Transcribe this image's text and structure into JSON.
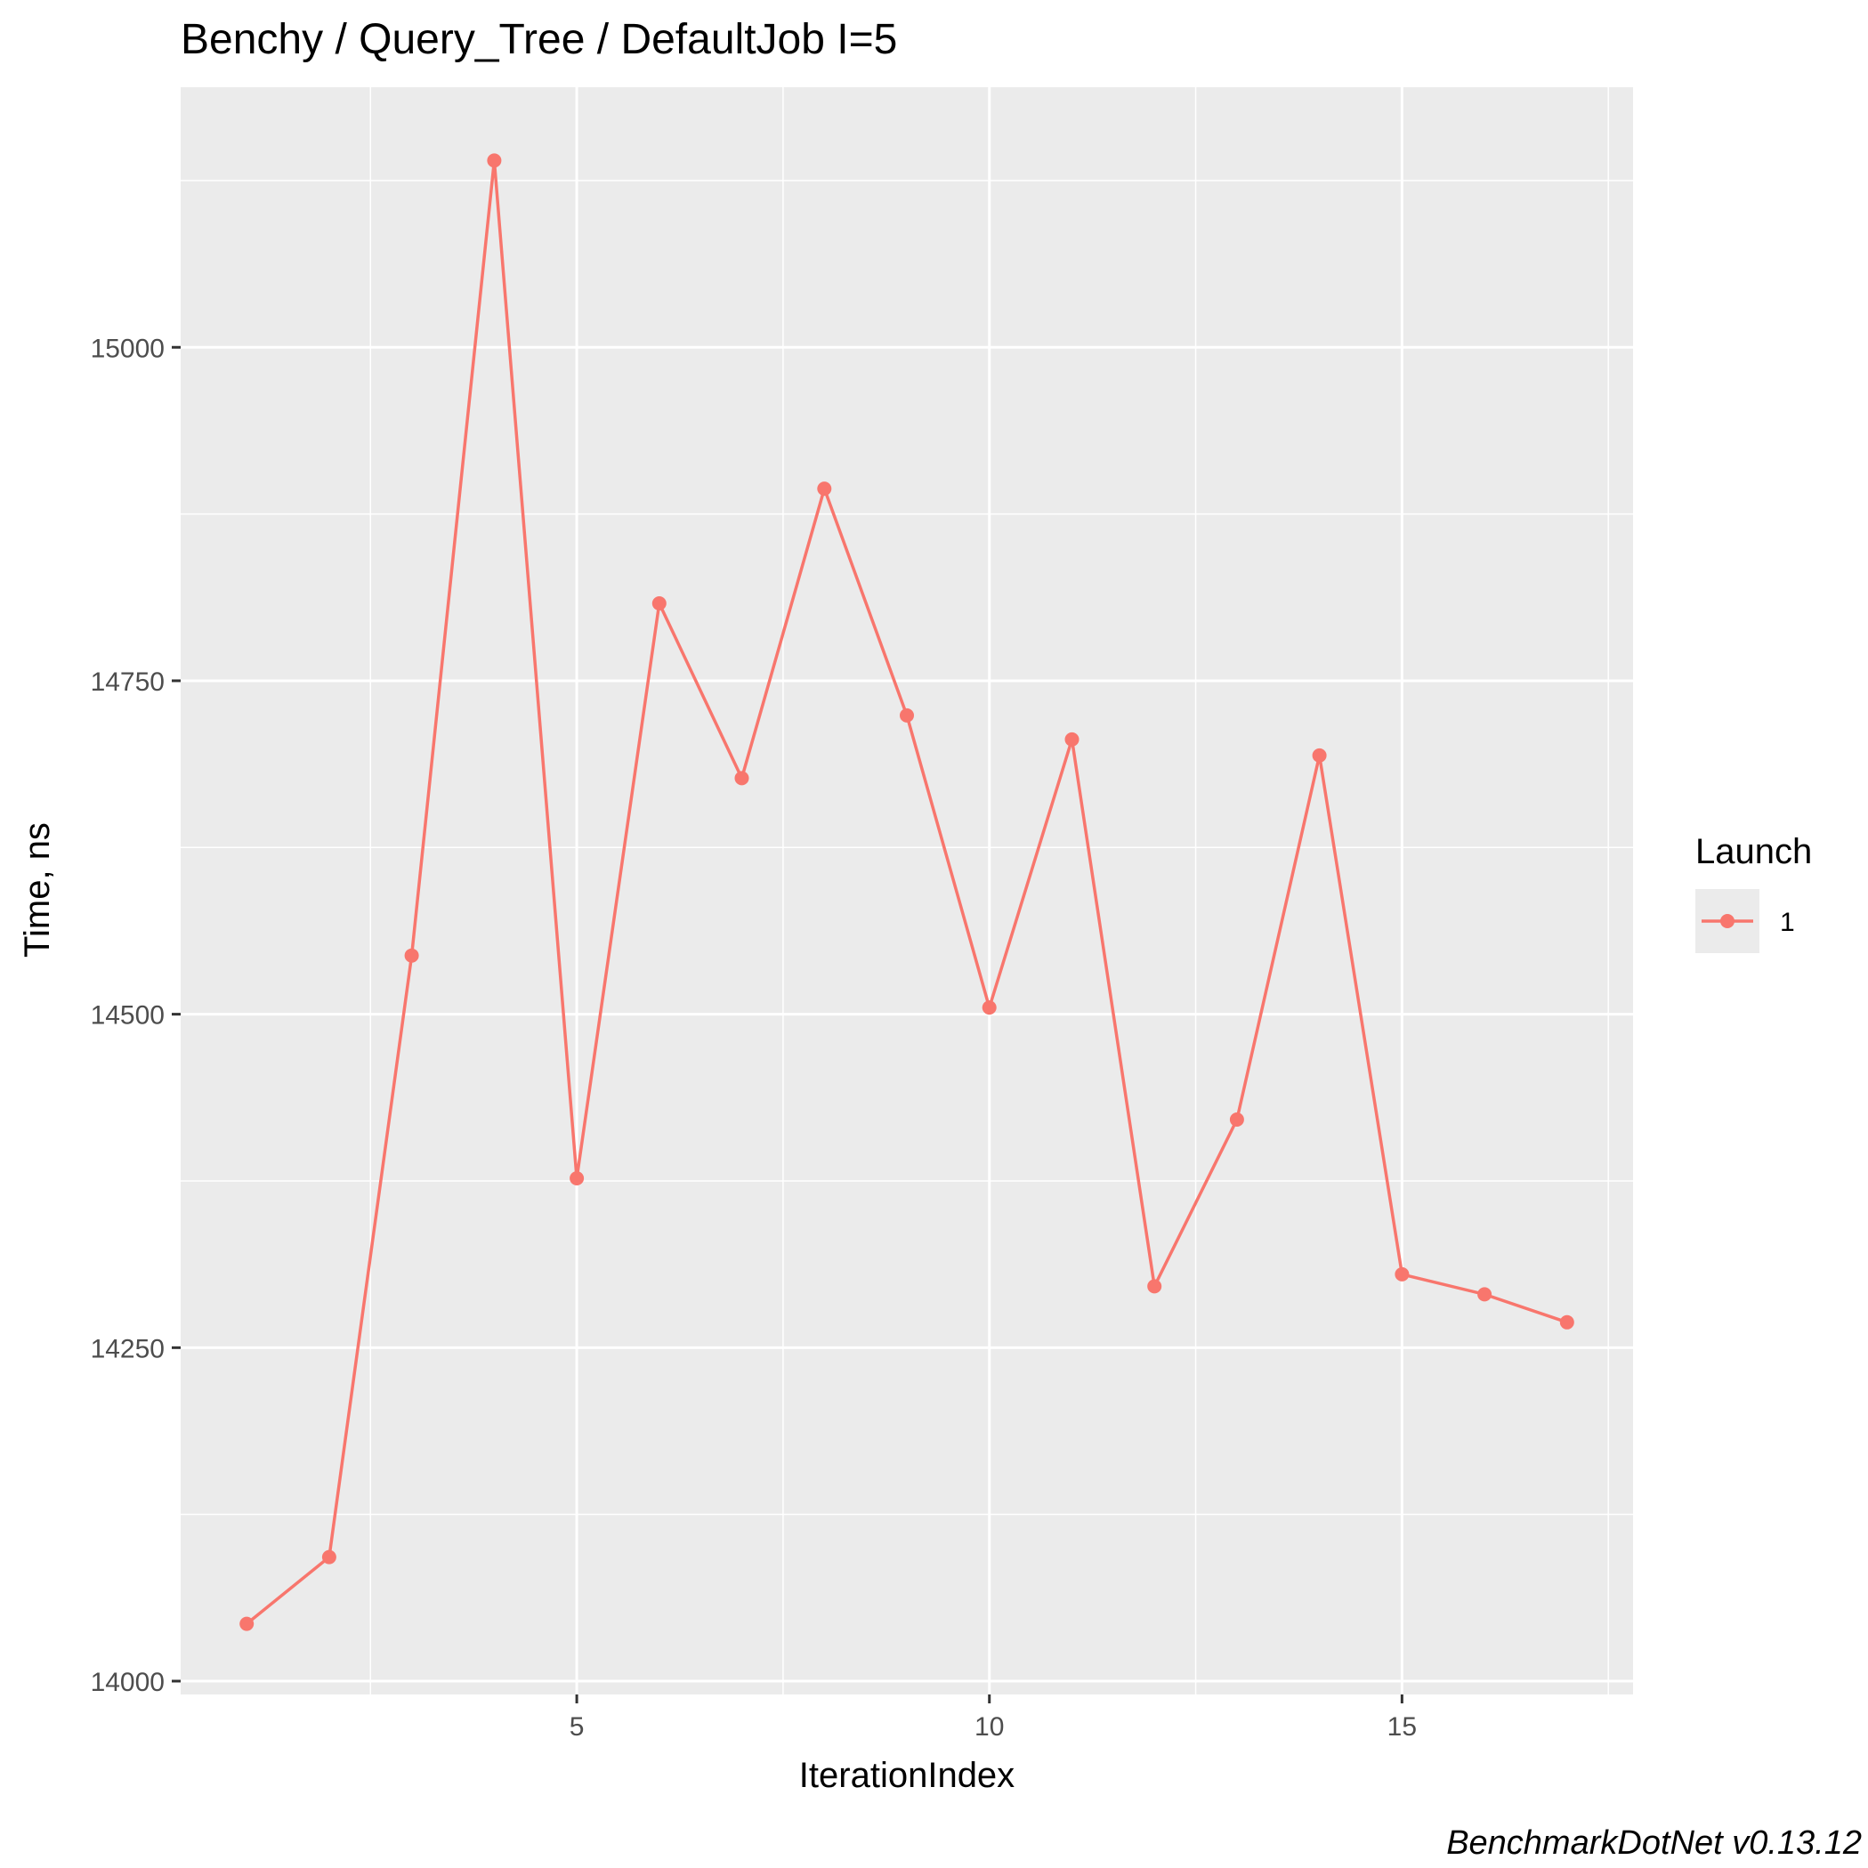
{
  "chart_data": {
    "type": "line",
    "title": "Benchy / Query_Tree / DefaultJob I=5",
    "xlabel": "IterationIndex",
    "ylabel": "Time, ns",
    "caption": "BenchmarkDotNet v0.13.12",
    "x": [
      1,
      2,
      3,
      4,
      5,
      6,
      7,
      8,
      9,
      10,
      11,
      12,
      13,
      14,
      15,
      16,
      17
    ],
    "series": [
      {
        "name": "1",
        "color": "#f8766d",
        "values": [
          14043,
          14093,
          14544,
          15140,
          14377,
          14808,
          14677,
          14894,
          14724,
          14505,
          14706,
          14296,
          14421,
          14694,
          14305,
          14290,
          14269
        ]
      }
    ],
    "xlim": [
      0.2,
      17.8
    ],
    "ylim": [
      13990,
      15195
    ],
    "x_ticks": [
      5,
      10,
      15
    ],
    "x_tick_labels": [
      "5",
      "10",
      "15"
    ],
    "y_ticks": [
      14000,
      14250,
      14500,
      14750,
      15000
    ],
    "y_tick_labels": [
      "14000",
      "14250",
      "14500",
      "14750",
      "15000"
    ],
    "grid": true,
    "legend": {
      "title": "Launch",
      "position": "right",
      "entries": [
        "1"
      ]
    },
    "colors": {
      "panel_background": "#ebebeb",
      "grid": "#ffffff",
      "series": "#f8766d",
      "tick_text": "#4d4d4d"
    }
  }
}
